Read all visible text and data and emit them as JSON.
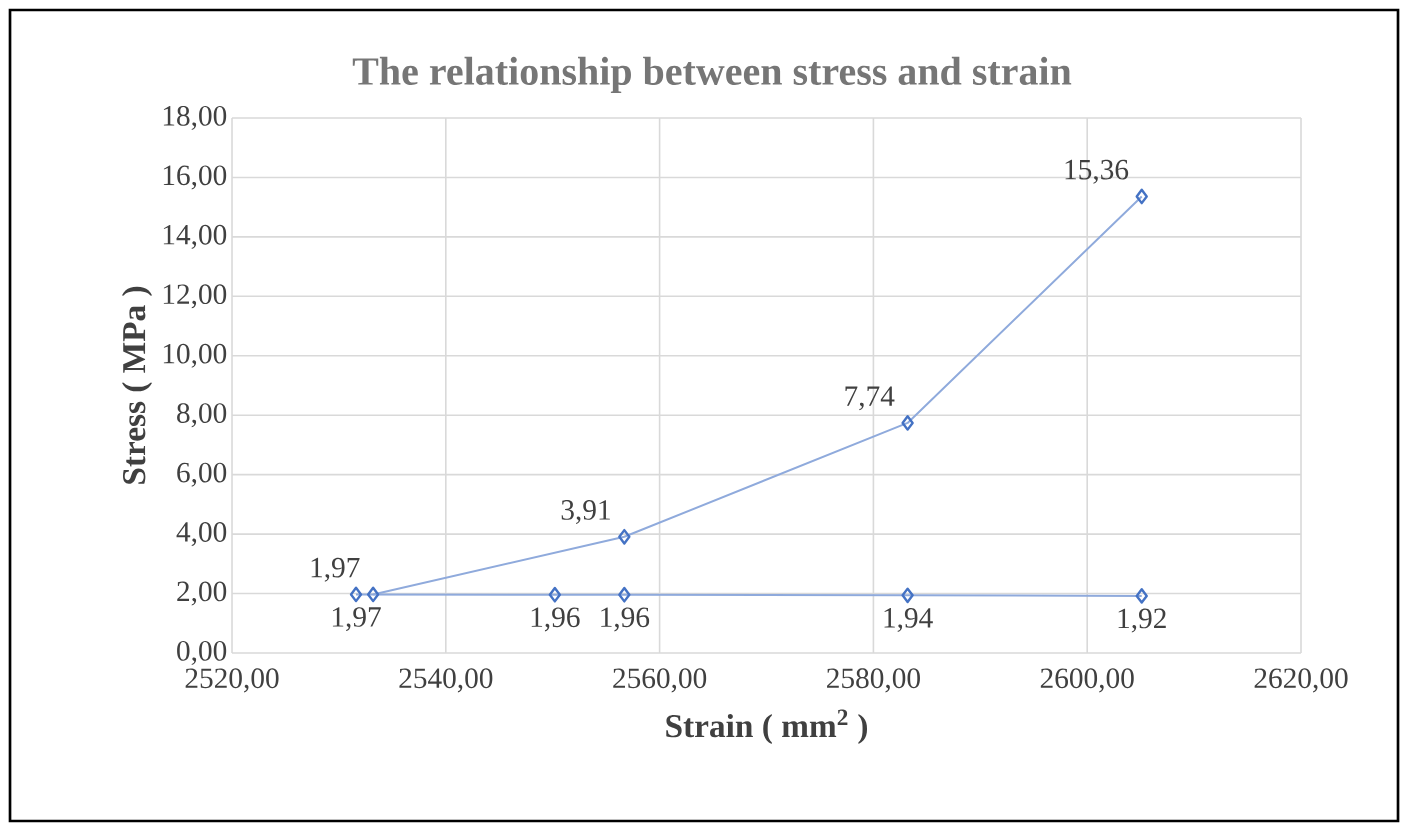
{
  "chart_data": {
    "type": "line",
    "title": "The relationship between stress and strain",
    "xlabel": "Strain ( mm$^{2}$ )",
    "ylabel": "Stress ( MPa )",
    "series": [
      {
        "color": "#4472c4",
        "x": [
          2531.6,
          2550.2,
          2556.7,
          2583.2,
          2605.1
        ],
        "values": [
          1.97,
          1.96,
          1.96,
          1.94,
          1.92
        ],
        "value_labels": [
          "1,97",
          "1,96",
          "1,96",
          "1,94",
          "1,92"
        ]
      },
      {
        "color": "#4472c4",
        "x": [
          2533.2,
          2556.7,
          2583.2,
          2605.1
        ],
        "values": [
          1.97,
          3.91,
          7.74,
          15.36
        ],
        "value_labels": [
          "1,97",
          "3,91",
          "7,74",
          "15,36"
        ]
      }
    ],
    "xlim": [
      2520,
      2620
    ],
    "ylim": [
      0,
      18
    ],
    "xticks": [
      {
        "value": 2520,
        "label": "2520,00"
      },
      {
        "value": 2540,
        "label": "2540,00"
      },
      {
        "value": 2560,
        "label": "2560,00"
      },
      {
        "value": 2580,
        "label": "2580,00"
      },
      {
        "value": 2600,
        "label": "2600,00"
      },
      {
        "value": 2620,
        "label": "2620,00"
      }
    ],
    "yticks": [
      {
        "value": 0,
        "label": "0,00"
      },
      {
        "value": 2,
        "label": "2,00"
      },
      {
        "value": 4,
        "label": "4,00"
      },
      {
        "value": 6,
        "label": "6,00"
      },
      {
        "value": 8,
        "label": "8,00"
      },
      {
        "value": 10,
        "label": "10,00"
      },
      {
        "value": 12,
        "label": "12,00"
      },
      {
        "value": 14,
        "label": "14,00"
      },
      {
        "value": 16,
        "label": "16,00"
      },
      {
        "value": 18,
        "label": "18,00"
      }
    ],
    "grid": true,
    "marker": "diamond",
    "line_style": "solid"
  }
}
